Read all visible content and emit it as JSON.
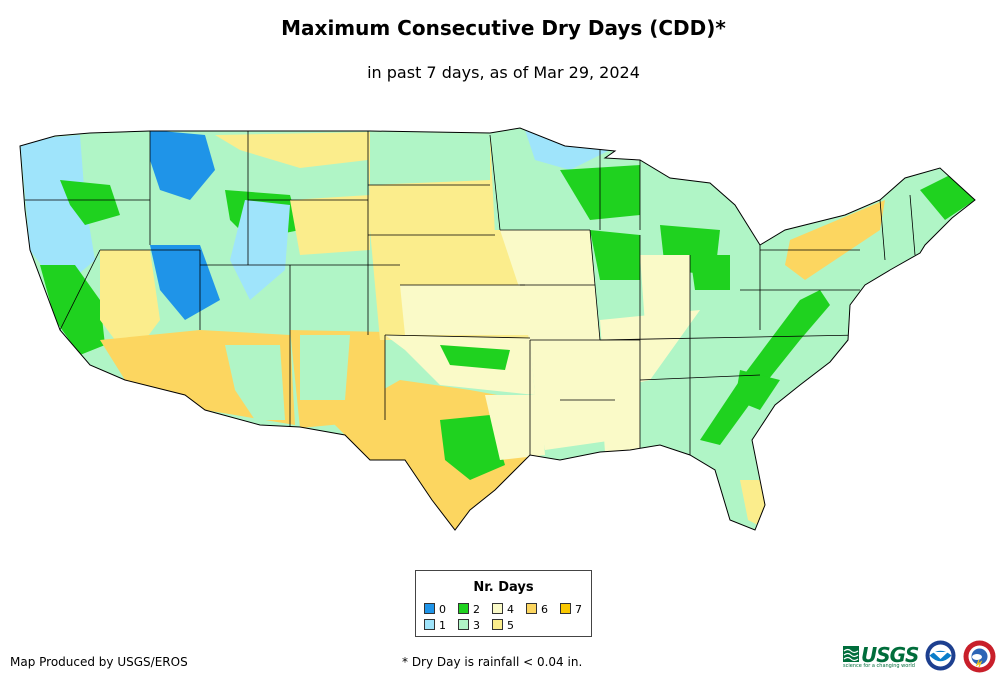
{
  "title": "Maximum Consecutive Dry Days (CDD)*",
  "subtitle": "in past 7 days, as of Mar 29, 2024",
  "legend": {
    "title": "Nr. Days",
    "items": [
      {
        "label": "0",
        "color": "#1f94e8"
      },
      {
        "label": "1",
        "color": "#9fe4fb"
      },
      {
        "label": "2",
        "color": "#1fd21f"
      },
      {
        "label": "3",
        "color": "#b0f5c6"
      },
      {
        "label": "4",
        "color": "#fafac8"
      },
      {
        "label": "5",
        "color": "#fbed8c"
      },
      {
        "label": "6",
        "color": "#fcd660"
      },
      {
        "label": "7",
        "color": "#fac800"
      }
    ]
  },
  "footer": {
    "producer": "Map Produced by USGS/EROS",
    "note": "* Dry Day is rainfall < 0.04 in."
  },
  "logos": {
    "usgs": {
      "name": "USGS",
      "tagline": "science for a changing world"
    },
    "noaa": {
      "name": "noaa-logo-icon"
    },
    "nws": {
      "name": "national-weather-service-icon"
    }
  }
}
